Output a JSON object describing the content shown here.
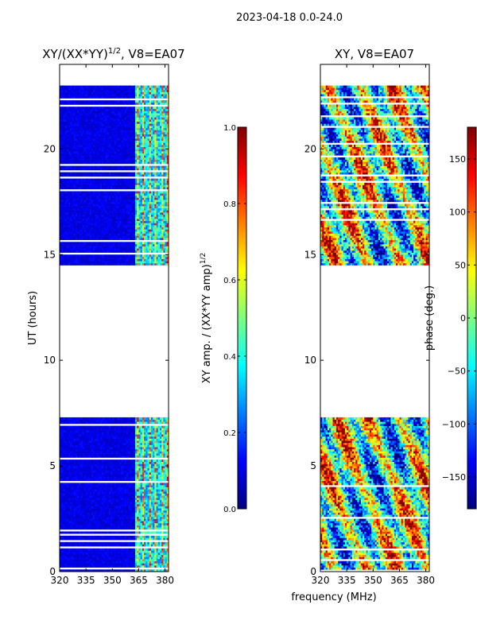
{
  "suptitle": "2023-04-18 0.0-24.0",
  "xlabel_shared": "frequency (MHz)",
  "colors": {
    "jet": [
      "#00007f",
      "#0000ff",
      "#007fff",
      "#00ffff",
      "#7fff7f",
      "#ffff00",
      "#ff7f00",
      "#ff0000",
      "#7f0000"
    ]
  },
  "chart_data": [
    {
      "type": "heatmap",
      "title_text": "XY/(XX*YY)",
      "title_exp": "1/2",
      "title_suffix": ", V8=EA07",
      "xlabel": "",
      "ylabel": "UT (hours)",
      "xlim": [
        320,
        382
      ],
      "ylim": [
        0,
        24
      ],
      "xticks": [
        320,
        335,
        350,
        365,
        380
      ],
      "xtick_labels": [
        "320",
        "335",
        "350",
        "365",
        "380"
      ],
      "yticks": [
        0,
        5,
        10,
        15,
        20
      ],
      "ytick_labels": [
        "0",
        "5",
        "10",
        "15",
        "20"
      ],
      "data_time_ranges": [
        [
          0,
          7.3
        ],
        [
          14.5,
          23
        ]
      ],
      "bright_freq_columns": [
        364,
        367,
        371,
        374,
        378,
        381
      ],
      "colorbar": {
        "label_text": "XY amp. / (XX*YY amp)",
        "label_exp": "1/2",
        "range": [
          0.0,
          1.0
        ],
        "ticks": [
          0.0,
          0.2,
          0.4,
          0.6,
          0.8,
          1.0
        ],
        "tick_labels": [
          "0.0",
          "0.2",
          "0.4",
          "0.6",
          "0.8",
          "1.0"
        ]
      }
    },
    {
      "type": "heatmap",
      "title_text": "XY, V8=EA07",
      "xlabel": "frequency (MHz)",
      "ylabel": "",
      "xlim": [
        320,
        382
      ],
      "ylim": [
        0,
        24
      ],
      "xticks": [
        320,
        335,
        350,
        365,
        380
      ],
      "xtick_labels": [
        "320",
        "335",
        "350",
        "365",
        "380"
      ],
      "yticks": [
        0,
        5,
        10,
        15,
        20
      ],
      "ytick_labels": [
        "0",
        "5",
        "10",
        "15",
        "20"
      ],
      "data_time_ranges": [
        [
          0,
          7.3
        ],
        [
          14.5,
          23
        ]
      ],
      "colorbar": {
        "label_text": "phase (deg.)",
        "range": [
          -180,
          180
        ],
        "ticks": [
          -150,
          -100,
          -50,
          0,
          50,
          100,
          150
        ],
        "tick_labels": [
          "−150",
          "−100",
          "−50",
          "0",
          "50",
          "100",
          "150"
        ]
      }
    }
  ]
}
